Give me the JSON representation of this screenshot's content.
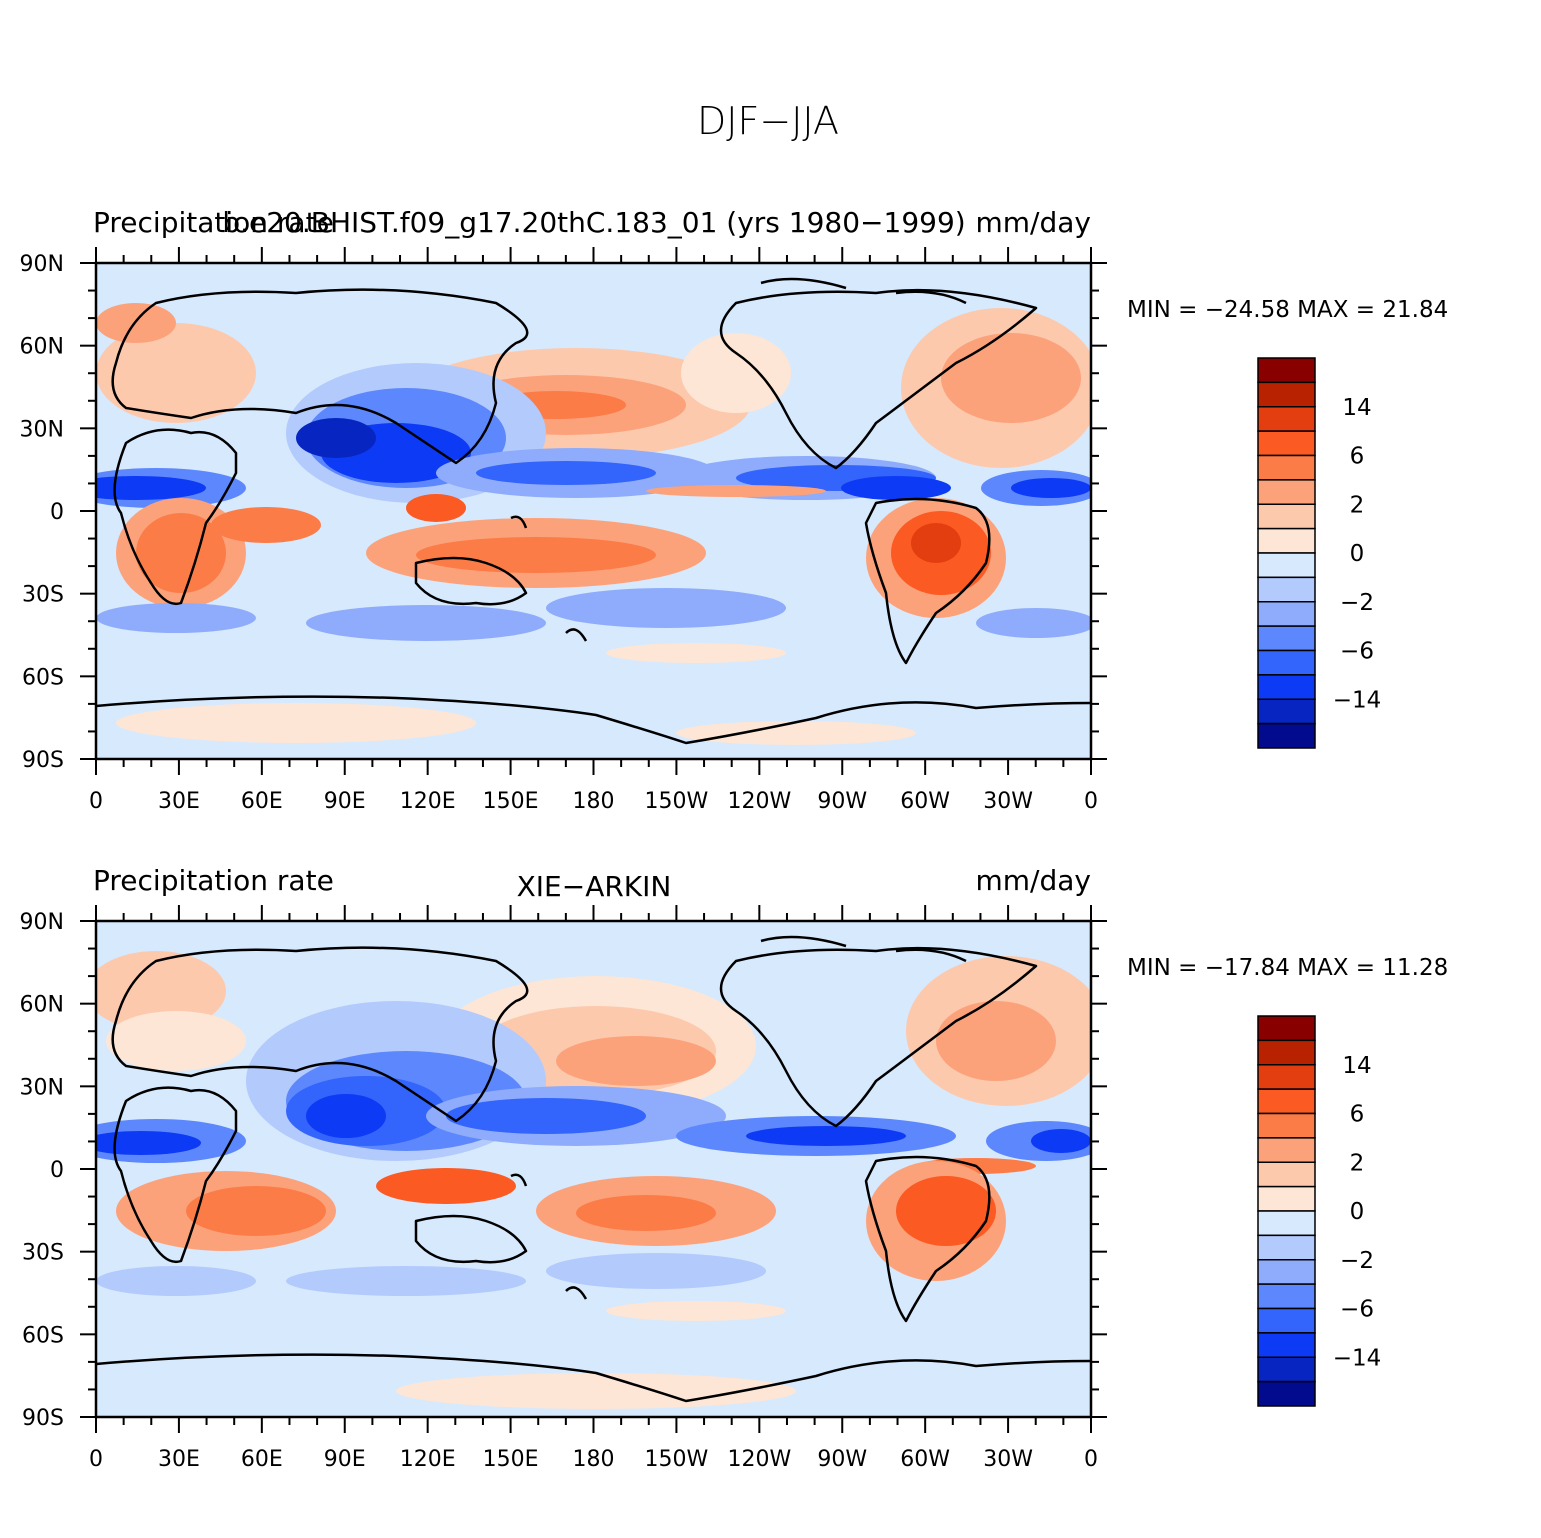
{
  "title": "DJF−JJA",
  "panels": [
    {
      "left_label": "Precipitation rate",
      "center_label": "b.e20.BHIST.f09_g17.20thC.183_01 (yrs 1980−1999)",
      "right_label": "mm/day",
      "min_max": "MIN = −24.58 MAX =   21.84"
    },
    {
      "left_label": "Precipitation rate",
      "center_label": "XIE−ARKIN",
      "right_label": "mm/day",
      "min_max": "MIN = −17.84 MAX =   11.28"
    }
  ],
  "lat_labels": [
    "90N",
    "60N",
    "30N",
    "0",
    "30S",
    "60S",
    "90S"
  ],
  "lon_labels": [
    "0",
    "30E",
    "60E",
    "90E",
    "120E",
    "150E",
    "180",
    "150W",
    "120W",
    "90W",
    "60W",
    "30W",
    "0"
  ],
  "colorbar": {
    "colors": [
      "#880000",
      "#b92200",
      "#e23e0f",
      "#fb5a23",
      "#fc7c48",
      "#fca27b",
      "#fdc9ad",
      "#fde6d6",
      "#d6e9fd",
      "#b3cafd",
      "#8eacfb",
      "#5d87fc",
      "#3364fb",
      "#0d3af5",
      "#0725c0",
      "#020b8e"
    ],
    "labels": [
      "14",
      "6",
      "2",
      "0",
      "−2",
      "−6",
      "−14"
    ]
  }
}
